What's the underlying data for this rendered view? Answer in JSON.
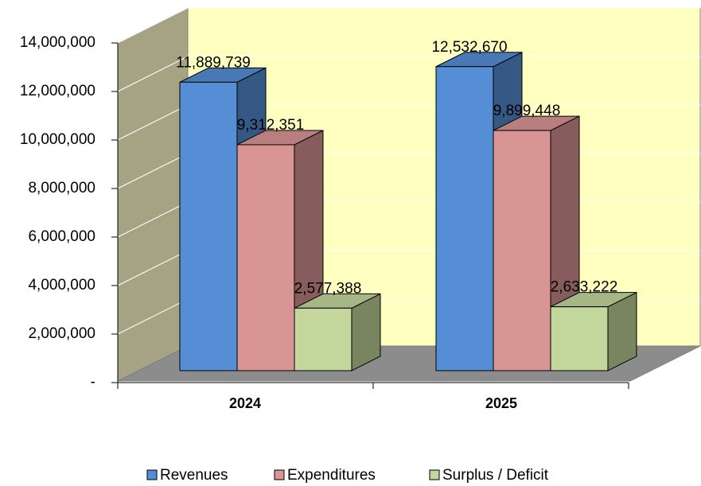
{
  "chart_data": {
    "type": "bar",
    "categories": [
      "2024",
      "2025"
    ],
    "series": [
      {
        "name": "Revenues",
        "color": "#558ed5",
        "values": [
          11889739,
          12532670
        ],
        "value_labels": [
          "11,889,739",
          "12,532,670"
        ]
      },
      {
        "name": "Expenditures",
        "color": "#d99594",
        "values": [
          9312351,
          9899448
        ],
        "value_labels": [
          "9,312,351",
          "9,899,448"
        ]
      },
      {
        "name": "Surplus / Deficit",
        "color": "#c3d69b",
        "values": [
          2577388,
          2633222
        ],
        "value_labels": [
          "2,577,388",
          "2,633,222"
        ]
      }
    ],
    "ylim": [
      0,
      14000000
    ],
    "yticks": [
      {
        "value": 0,
        "label": "-"
      },
      {
        "value": 2000000,
        "label": "2,000,000"
      },
      {
        "value": 4000000,
        "label": "4,000,000"
      },
      {
        "value": 6000000,
        "label": "6,000,000"
      },
      {
        "value": 8000000,
        "label": "8,000,000"
      },
      {
        "value": 10000000,
        "label": "10,000,000"
      },
      {
        "value": 12000000,
        "label": "12,000,000"
      },
      {
        "value": 14000000,
        "label": "14,000,000"
      }
    ],
    "grid": true,
    "legend": "bottom"
  }
}
